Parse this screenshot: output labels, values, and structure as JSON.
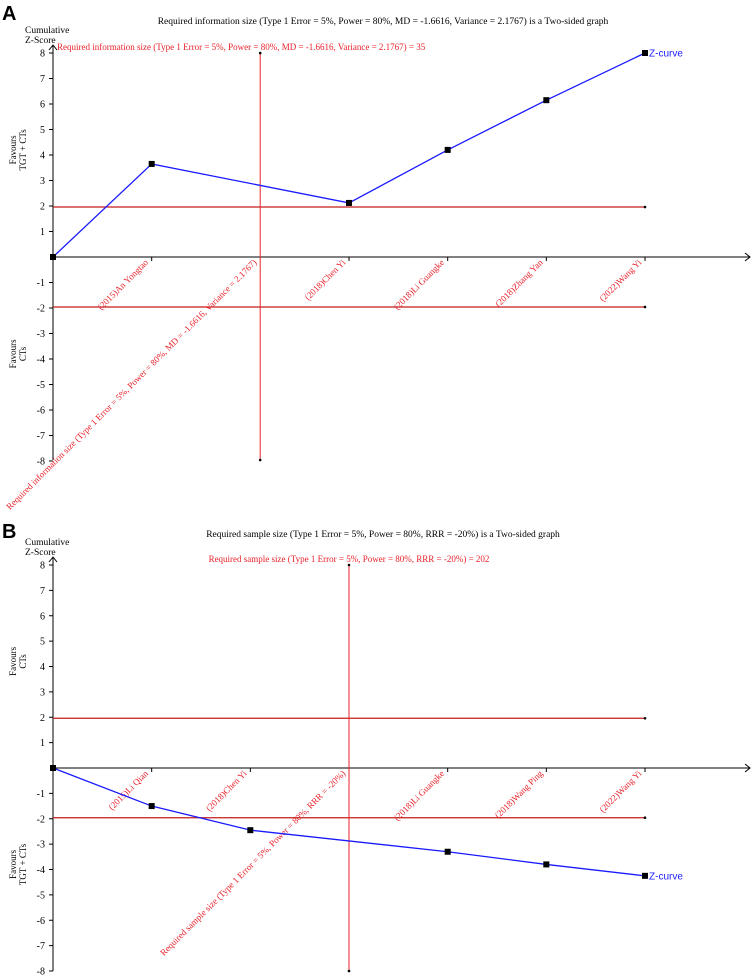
{
  "chart_data": [
    {
      "type": "line",
      "panel_label": "A",
      "title": "Required information size (Type 1 Error = 5%, Power = 80%, MD = -1.6616, Variance = 2.1767) is a Two-sided graph",
      "ylabel_line1": "Cumulative",
      "ylabel_line2": "Z-Score",
      "ylim": [
        -8,
        8
      ],
      "yticks": [
        8,
        7,
        6,
        5,
        4,
        3,
        2,
        1,
        -1,
        -2,
        -3,
        -4,
        -5,
        -6,
        -7,
        -8
      ],
      "favours_top": [
        "Favours",
        "TGT + CTs"
      ],
      "favours_bottom": [
        "Favours",
        "CTs"
      ],
      "ris_label": "Required information size (Type 1 Error = 5%, Power = 80%, MD = -1.6616, Variance = 2.1767) = 35",
      "ris_position": 0.35,
      "ris_axis_label": "Required information size (Type 1 Error = 5%, Power = 80%, MD = -1.6616, Variance = 2.1767)",
      "categories": [
        "(2015)An Yongtao",
        "(2018)Chen Yi",
        "(2018)Li Guangke",
        "(2018)Zhang Yan",
        "(2022)Wang Yi"
      ],
      "category_positions": [
        0.1667,
        0.5,
        0.6667,
        0.8333,
        1.0
      ],
      "boundary_upper": 1.96,
      "boundary_lower": -1.96,
      "series": [
        {
          "legend": "Z-curve",
          "color": "#1a1aff",
          "x": [
            0,
            0.1667,
            0.5,
            0.6667,
            0.8333,
            1.0
          ],
          "y": [
            0,
            3.65,
            2.12,
            4.2,
            6.15,
            8.0
          ]
        }
      ]
    },
    {
      "type": "line",
      "panel_label": "B",
      "title": "Required sample size (Type 1 Error = 5%, Power = 80%, RRR = -20%) is a Two-sided graph",
      "ylabel_line1": "Cumulative",
      "ylabel_line2": "Z-Score",
      "ylim": [
        -8,
        8
      ],
      "yticks": [
        8,
        7,
        6,
        5,
        4,
        3,
        2,
        1,
        -1,
        -2,
        -3,
        -4,
        -5,
        -6,
        -7,
        -8
      ],
      "favours_top": [
        "Favours",
        "CTs"
      ],
      "favours_bottom": [
        "Favours",
        "TGT + CTs"
      ],
      "ris_label": "Required sample size (Type 1 Error = 5%, Power = 80%, RRR = -20%) = 202",
      "ris_position": 0.5,
      "ris_axis_label": "Required sample size (Type 1 Error = 5%, Power = 80%, RRR = -20%)",
      "categories": [
        "(2015)Li Qian",
        "(2018)Chen Yi",
        "(2018)Li Guangke",
        "(2018)Wang Ping",
        "(2022)Wang Yi"
      ],
      "category_positions": [
        0.1667,
        0.3333,
        0.6667,
        0.8333,
        1.0
      ],
      "boundary_upper": 1.96,
      "boundary_lower": -1.96,
      "series": [
        {
          "legend": "Z-curve",
          "color": "#1a1aff",
          "x": [
            0,
            0.1667,
            0.3333,
            0.6667,
            0.8333,
            1.0
          ],
          "y": [
            0,
            -1.5,
            -2.45,
            -3.3,
            -3.8,
            -4.25
          ]
        }
      ]
    }
  ],
  "colors": {
    "boundary": "#c21c1c",
    "ris": "#e8212a",
    "zcurve": "#1a1aff",
    "axis": "#000000"
  }
}
